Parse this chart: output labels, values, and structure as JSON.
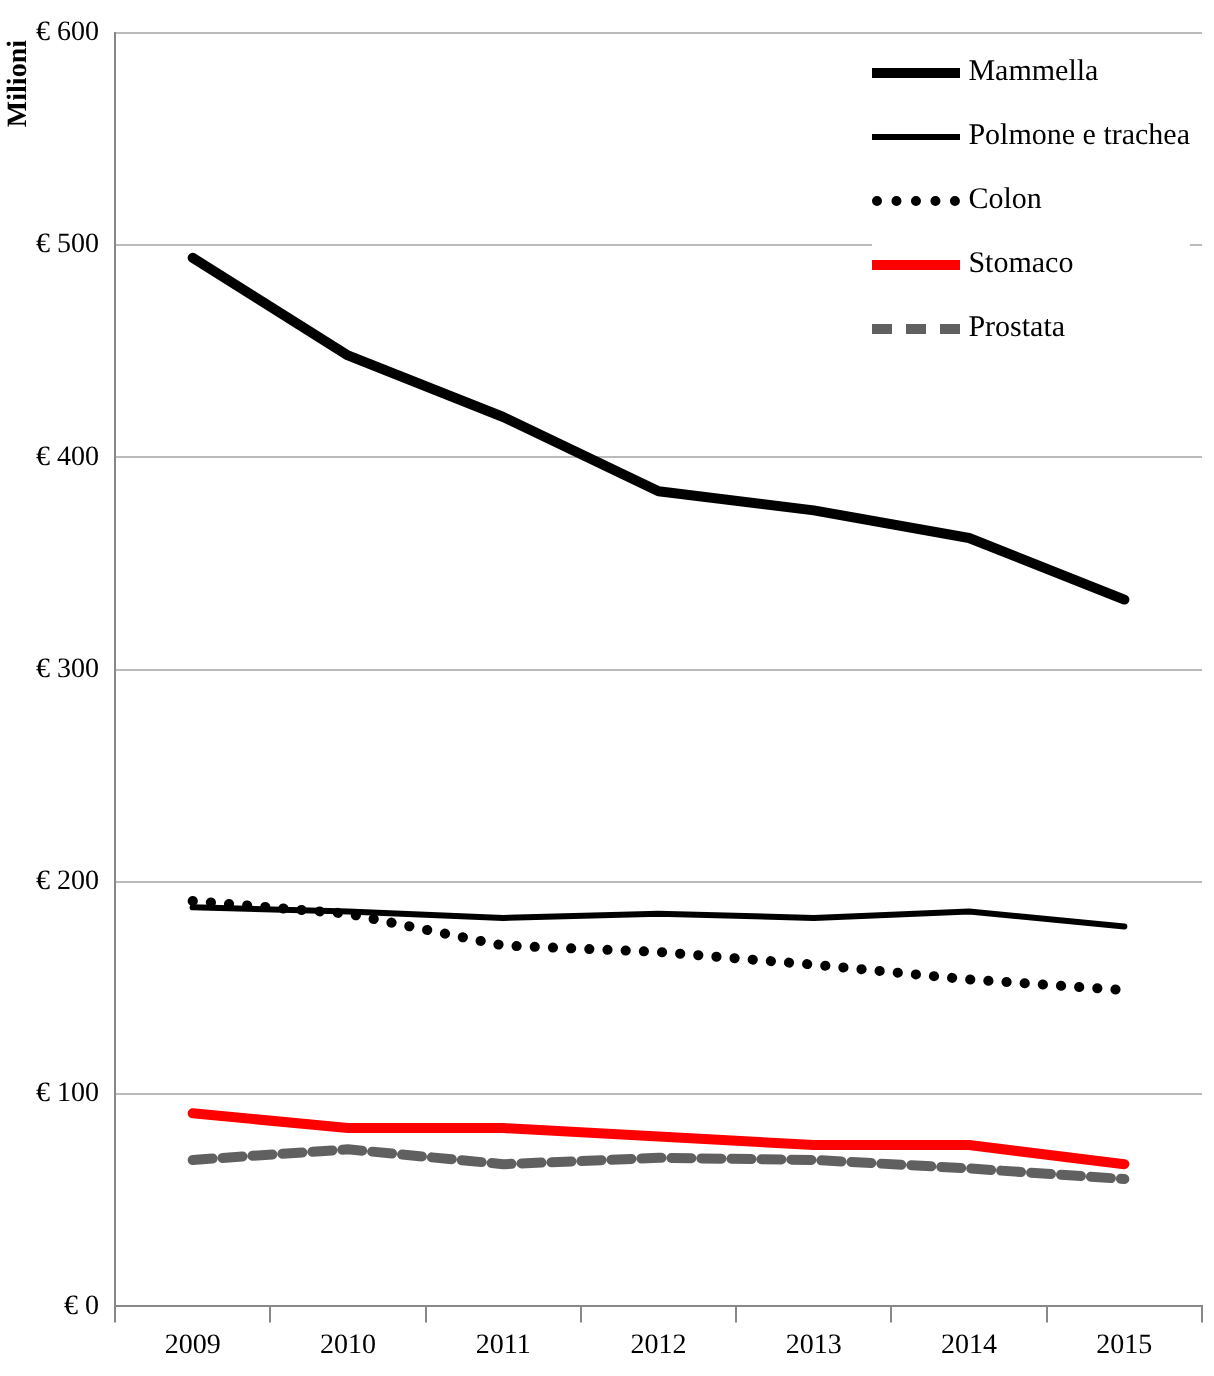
{
  "chart_data": {
    "type": "line",
    "ylabel": "Milioni",
    "categories": [
      "2009",
      "2010",
      "2011",
      "2012",
      "2013",
      "2014",
      "2015"
    ],
    "ylim": [
      0,
      600
    ],
    "yticks": [
      {
        "value": 0,
        "label": "€ 0"
      },
      {
        "value": 100,
        "label": "€ 100"
      },
      {
        "value": 200,
        "label": "€ 200"
      },
      {
        "value": 300,
        "label": "€ 300"
      },
      {
        "value": 400,
        "label": "€ 400"
      },
      {
        "value": 500,
        "label": "€ 500"
      },
      {
        "value": 600,
        "label": "€ 600"
      }
    ],
    "grid": "y",
    "legend": "top right",
    "marker": "none",
    "series": [
      {
        "name": "Mammella",
        "color": "#000000",
        "line_style": "solid",
        "values": [
          494,
          448,
          419,
          384,
          375,
          362,
          333
        ]
      },
      {
        "name": "Polmone e trachea",
        "color": "#000000",
        "line_style": "solid",
        "values": [
          188,
          186,
          183,
          185,
          183,
          186,
          179
        ]
      },
      {
        "name": "Colon",
        "color": "#000000",
        "line_style": "dotted",
        "values": [
          191,
          185,
          170,
          167,
          161,
          154,
          149
        ]
      },
      {
        "name": "Stomaco",
        "color": "#ff0000",
        "line_style": "solid",
        "values": [
          91,
          84,
          84,
          80,
          76,
          76,
          67
        ]
      },
      {
        "name": "Prostata",
        "color": "#606060",
        "line_style": "dashed",
        "values": [
          69,
          74,
          67,
          70,
          69,
          65,
          60
        ]
      }
    ]
  }
}
